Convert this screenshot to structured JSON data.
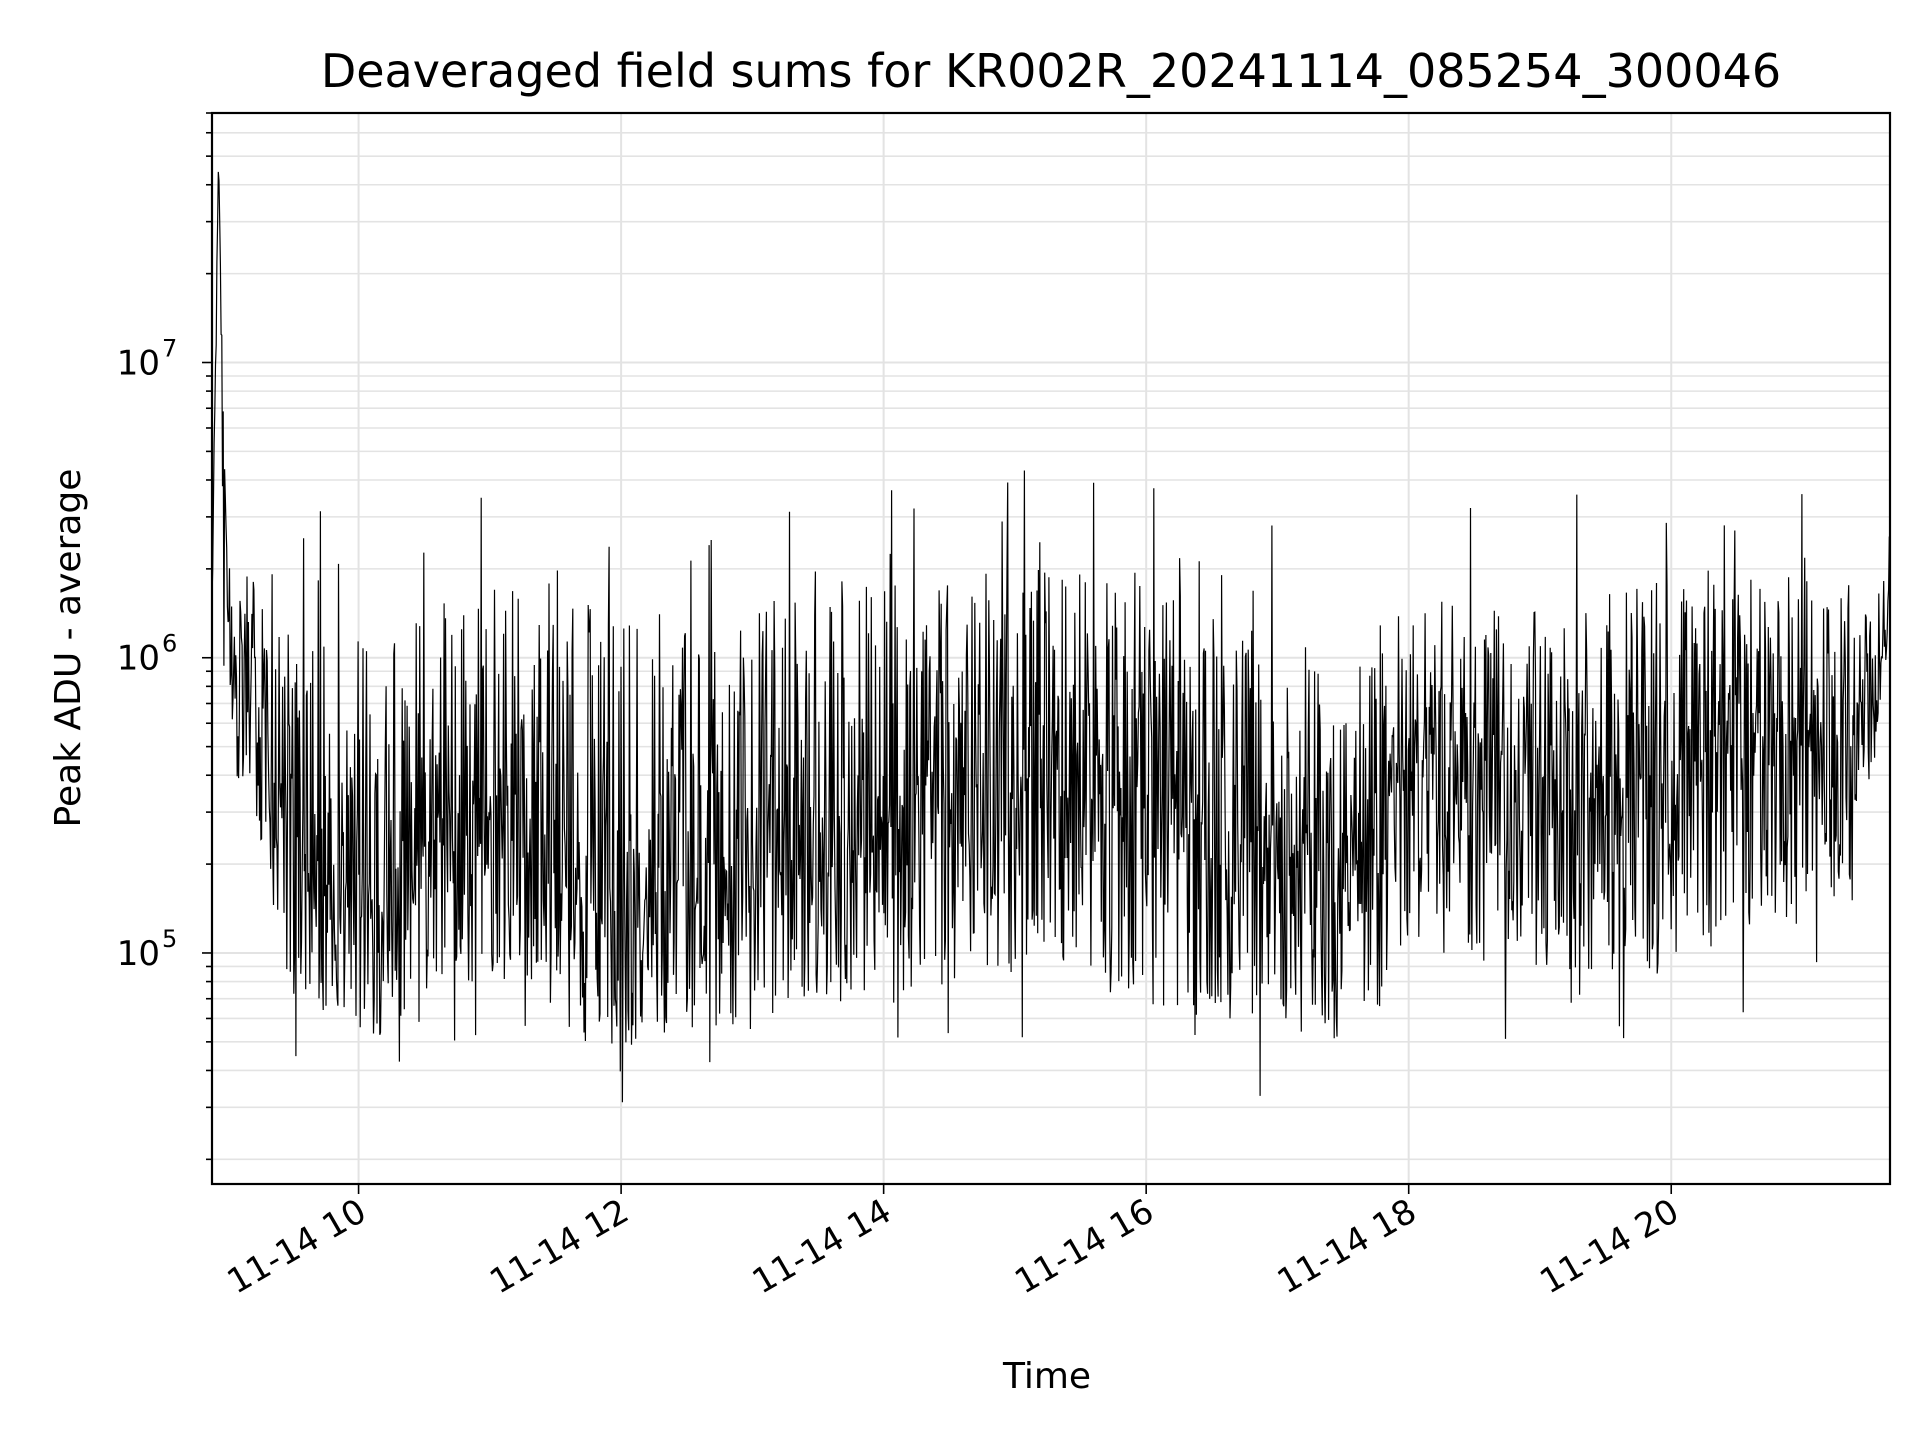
{
  "chart_data": {
    "type": "line",
    "title": "Deaveraged field sums for KR002R_20241114_085254_300046",
    "xlabel": "Time",
    "ylabel": "Peak ADU - average",
    "x_range": [
      "2024-11-14T08:53:00",
      "2024-11-14T21:40:00"
    ],
    "ylim": [
      16500,
      70000000
    ],
    "yscale": "log",
    "grid": true,
    "x_ticks": [
      "11-14 10",
      "11-14 12",
      "11-14 14",
      "11-14 16",
      "11-14 18",
      "11-14 20"
    ],
    "y_ticks": [
      {
        "base": "10",
        "exp": "5",
        "value": 100000
      },
      {
        "base": "10",
        "exp": "6",
        "value": 1000000
      },
      {
        "base": "10",
        "exp": "7",
        "value": 10000000
      }
    ],
    "line_color": "#000000",
    "series": [
      {
        "x": [
          "2024-11-14T08:53",
          "2024-11-14T08:56",
          "2024-11-14T09:00",
          "2024-11-14T09:10",
          "2024-11-14T09:20",
          "2024-11-14T09:30",
          "2024-11-14T09:45",
          "2024-11-14T10:00",
          "2024-11-14T10:10",
          "2024-11-14T10:30",
          "2024-11-14T10:50",
          "2024-11-14T11:10",
          "2024-11-14T11:30",
          "2024-11-14T11:50",
          "2024-11-14T12:10",
          "2024-11-14T12:40",
          "2024-11-14T13:00",
          "2024-11-14T13:30",
          "2024-11-14T14:00",
          "2024-11-14T14:30",
          "2024-11-14T15:00",
          "2024-11-14T15:30",
          "2024-11-14T16:00",
          "2024-11-14T16:30",
          "2024-11-14T17:00",
          "2024-11-14T17:30",
          "2024-11-14T17:50",
          "2024-11-14T18:00",
          "2024-11-14T18:30",
          "2024-11-14T19:00",
          "2024-11-14T19:30",
          "2024-11-14T20:00",
          "2024-11-14T20:30",
          "2024-11-14T21:00",
          "2024-11-14T21:20",
          "2024-11-14T21:40"
        ],
        "y": [
          1500000,
          45000000,
          1200000,
          900000,
          500000,
          200000,
          180000,
          160000,
          150000,
          230000,
          280000,
          330000,
          200000,
          150000,
          170000,
          200000,
          200000,
          280000,
          260000,
          330000,
          380000,
          350000,
          300000,
          270000,
          220000,
          170000,
          230000,
          500000,
          400000,
          380000,
          380000,
          420000,
          480000,
          500000,
          560000,
          1100000
        ],
        "low": [
          1000000,
          1300000,
          700000,
          300000,
          120000,
          70000,
          60000,
          55000,
          50000,
          70000,
          80000,
          90000,
          60000,
          45000,
          50000,
          55000,
          55000,
          70000,
          65000,
          80000,
          85000,
          80000,
          65000,
          60000,
          55000,
          50000,
          65000,
          110000,
          90000,
          85000,
          85000,
          90000,
          110000,
          120000,
          150000,
          700000
        ],
        "high": [
          2500000,
          45000000,
          2500000,
          2000000,
          1800000,
          1200000,
          1500000,
          1300000,
          1300000,
          1500000,
          1600000,
          1800000,
          1800000,
          1300000,
          1500000,
          1500000,
          1600000,
          2000000,
          1800000,
          2000000,
          2000000,
          2000000,
          1800000,
          1600000,
          1300000,
          1100000,
          1200000,
          1700000,
          1600000,
          1500000,
          1700000,
          1800000,
          1800000,
          2000000,
          1800000,
          1900000
        ]
      }
    ]
  }
}
